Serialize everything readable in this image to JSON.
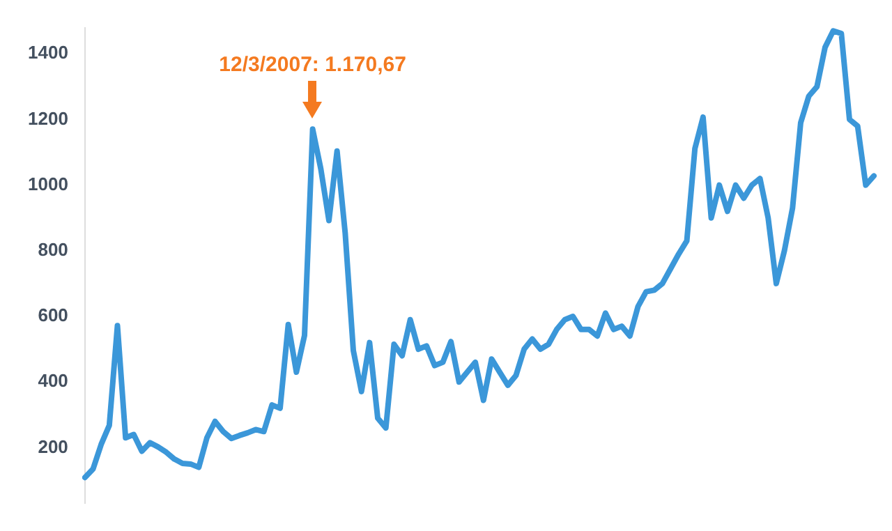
{
  "chart_data": {
    "type": "line",
    "categories": [
      null,
      null,
      null,
      null,
      null,
      null,
      null,
      null,
      null,
      null,
      null,
      null,
      null,
      null,
      null,
      null,
      null,
      null,
      null,
      null,
      null,
      null,
      null,
      null,
      null,
      null,
      null,
      null,
      null,
      null,
      null,
      null,
      null,
      null,
      null,
      null,
      null,
      null,
      null,
      null,
      null,
      null,
      null,
      null,
      null,
      null,
      null,
      null,
      null,
      null,
      null,
      null,
      null,
      null,
      null,
      null,
      null,
      null,
      null,
      null,
      null,
      null,
      null,
      null,
      null,
      null,
      null,
      null,
      null,
      null,
      null,
      null,
      null,
      null,
      null,
      null,
      null,
      null,
      null,
      null,
      null,
      null,
      null,
      null,
      null,
      null,
      null,
      null,
      null,
      null,
      null,
      null,
      null,
      null,
      null,
      null,
      null,
      null
    ],
    "series": [
      {
        "color": "#3b97d9",
        "values": [
          109,
          135,
          210,
          268,
          572,
          230,
          240,
          189,
          215,
          202,
          186,
          165,
          152,
          150,
          140,
          230,
          280,
          249,
          228,
          237,
          245,
          255,
          249,
          330,
          320,
          575,
          430,
          542,
          1170.67,
          1050,
          892,
          1104,
          854,
          496,
          371,
          520,
          290,
          260,
          515,
          480,
          590,
          500,
          510,
          450,
          460,
          523,
          400,
          430,
          460,
          344,
          470,
          430,
          390,
          420,
          500,
          531,
          500,
          515,
          560,
          590,
          600,
          560,
          560,
          540,
          610,
          560,
          570,
          540,
          630,
          675,
          680,
          700,
          745,
          790,
          830,
          1112,
          1207,
          900,
          1000,
          920,
          1000,
          960,
          1000,
          1020,
          900,
          700,
          800,
          930,
          1190,
          1271,
          1300,
          1420,
          1470,
          1462,
          1200,
          1180,
          1000,
          1028
        ]
      }
    ],
    "ylim": [
      30,
      1480
    ],
    "yticks": [
      200,
      400,
      600,
      800,
      1000,
      1200,
      1400
    ],
    "annotations": [
      {
        "text": "12/3/2007: 1.170,67",
        "y": 1170.67
      }
    ],
    "grid": false,
    "legend": false,
    "tick_labels": "y",
    "marker": "none",
    "line_style": "solid"
  }
}
